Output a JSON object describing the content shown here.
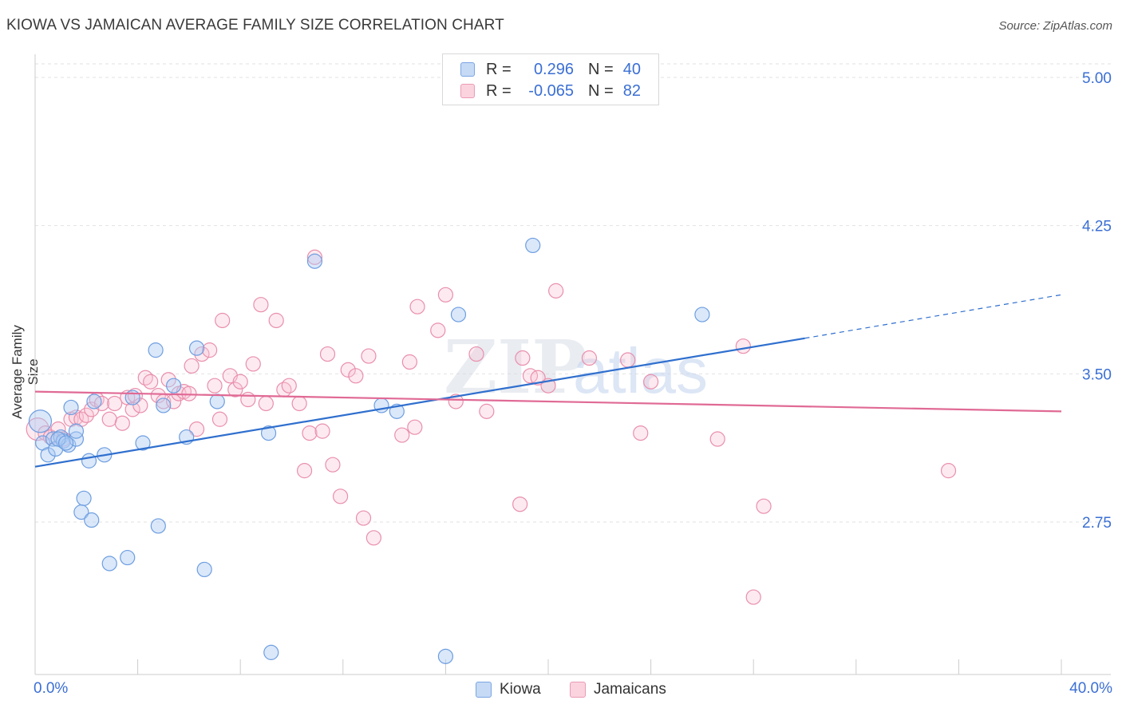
{
  "header": {
    "title": "KIOWA VS JAMAICAN AVERAGE FAMILY SIZE CORRELATION CHART",
    "source": "Source: ZipAtlas.com"
  },
  "colors": {
    "kiowa_fill": "#aecbf3",
    "kiowa_stroke": "#6e9ee0",
    "kiowa_line": "#2f6fce",
    "jamaican_fill": "#f8c4d4",
    "jamaican_stroke": "#e98fac",
    "jamaican_line": "#e06a95",
    "axis_label": "#3b6fd4"
  },
  "legend": {
    "kiowa": {
      "r_label": "R =",
      "r_value": "0.296",
      "n_label": "N =",
      "n_value": "40"
    },
    "jamaicans": {
      "r_label": "R =",
      "r_value": "-0.065",
      "n_label": "N =",
      "n_value": "82"
    }
  },
  "bottom_legend": {
    "kiowa": "Kiowa",
    "jamaicans": "Jamaicans"
  },
  "axes": {
    "x_min_label": "0.0%",
    "x_max_label": "40.0%",
    "y_title": "Average Family Size"
  },
  "chart_data": {
    "type": "scatter",
    "title": "KIOWA VS JAMAICAN AVERAGE FAMILY SIZE CORRELATION CHART",
    "xlabel": "",
    "ylabel": "Average Family Size",
    "xlim": [
      0,
      40
    ],
    "ylim": [
      2.0,
      5.1
    ],
    "y_ticks": [
      2.75,
      3.5,
      4.25,
      5.0
    ],
    "y_tick_labels": [
      "2.75",
      "3.50",
      "4.25",
      "5.00"
    ],
    "watermark": "ZIPatlas",
    "series": [
      {
        "name": "Kiowa",
        "R": 0.296,
        "N": 40,
        "trend": {
          "x0": 0,
          "y0": 3.03,
          "x1": 30.0,
          "y1": 3.68,
          "dash_to_x": 40,
          "dash_to_y": 3.9
        },
        "points": [
          [
            0.2,
            3.26,
            14
          ],
          [
            0.3,
            3.15,
            9
          ],
          [
            0.5,
            3.09,
            9
          ],
          [
            0.7,
            3.17,
            9
          ],
          [
            0.8,
            3.12,
            9
          ],
          [
            1.0,
            3.18,
            9
          ],
          [
            1.1,
            3.16,
            9
          ],
          [
            1.3,
            3.14,
            9
          ],
          [
            1.4,
            3.33,
            9
          ],
          [
            1.6,
            3.17,
            9
          ],
          [
            1.6,
            3.21,
            9
          ],
          [
            1.9,
            2.87,
            9
          ],
          [
            1.8,
            2.8,
            9
          ],
          [
            2.1,
            3.06,
            9
          ],
          [
            2.2,
            2.76,
            9
          ],
          [
            2.3,
            3.36,
            9
          ],
          [
            2.7,
            3.09,
            9
          ],
          [
            2.9,
            2.54,
            9
          ],
          [
            3.6,
            2.57,
            9
          ],
          [
            3.8,
            3.38,
            9
          ],
          [
            4.2,
            3.15,
            9
          ],
          [
            4.7,
            3.62,
            9
          ],
          [
            4.8,
            2.73,
            9
          ],
          [
            5.0,
            3.34,
            9
          ],
          [
            5.4,
            3.44,
            9
          ],
          [
            5.9,
            3.18,
            9
          ],
          [
            6.3,
            3.63,
            9
          ],
          [
            6.6,
            2.51,
            9
          ],
          [
            7.1,
            3.36,
            9
          ],
          [
            9.1,
            3.2,
            9
          ],
          [
            9.2,
            2.09,
            9
          ],
          [
            10.9,
            4.07,
            9
          ],
          [
            13.5,
            3.34,
            9
          ],
          [
            14.1,
            3.31,
            9
          ],
          [
            16.0,
            2.07,
            9
          ],
          [
            16.5,
            3.8,
            9
          ],
          [
            19.4,
            4.15,
            9
          ],
          [
            26.0,
            3.8,
            9
          ],
          [
            0.9,
            3.17,
            9
          ],
          [
            1.2,
            3.15,
            9
          ]
        ]
      },
      {
        "name": "Jamaicans",
        "R": -0.065,
        "N": 82,
        "trend": {
          "x0": 0,
          "y0": 3.41,
          "x1": 40,
          "y1": 3.31
        },
        "points": [
          [
            0.1,
            3.22,
            14
          ],
          [
            0.4,
            3.2,
            9
          ],
          [
            0.6,
            3.18,
            9
          ],
          [
            0.9,
            3.22,
            9
          ],
          [
            1.1,
            3.17,
            9
          ],
          [
            1.4,
            3.27,
            9
          ],
          [
            1.6,
            3.28,
            9
          ],
          [
            1.8,
            3.27,
            9
          ],
          [
            2.0,
            3.29,
            9
          ],
          [
            2.2,
            3.32,
            9
          ],
          [
            2.4,
            3.37,
            9
          ],
          [
            2.6,
            3.35,
            9
          ],
          [
            2.9,
            3.27,
            9
          ],
          [
            3.1,
            3.35,
            9
          ],
          [
            3.4,
            3.25,
            9
          ],
          [
            3.6,
            3.38,
            9
          ],
          [
            3.8,
            3.32,
            9
          ],
          [
            3.9,
            3.39,
            9
          ],
          [
            4.1,
            3.34,
            9
          ],
          [
            4.3,
            3.48,
            9
          ],
          [
            4.5,
            3.46,
            9
          ],
          [
            4.8,
            3.39,
            9
          ],
          [
            5.0,
            3.36,
            9
          ],
          [
            5.2,
            3.47,
            9
          ],
          [
            5.4,
            3.36,
            9
          ],
          [
            5.6,
            3.4,
            9
          ],
          [
            5.8,
            3.41,
            9
          ],
          [
            6.0,
            3.4,
            9
          ],
          [
            6.1,
            3.54,
            9
          ],
          [
            6.3,
            3.22,
            9
          ],
          [
            6.5,
            3.6,
            9
          ],
          [
            6.8,
            3.62,
            9
          ],
          [
            7.0,
            3.44,
            9
          ],
          [
            7.2,
            3.27,
            9
          ],
          [
            7.3,
            3.77,
            9
          ],
          [
            7.6,
            3.49,
            9
          ],
          [
            7.8,
            3.42,
            9
          ],
          [
            8.0,
            3.46,
            9
          ],
          [
            8.3,
            3.37,
            9
          ],
          [
            8.5,
            3.55,
            9
          ],
          [
            8.8,
            3.85,
            9
          ],
          [
            9.0,
            3.35,
            9
          ],
          [
            9.4,
            3.77,
            9
          ],
          [
            9.7,
            3.42,
            9
          ],
          [
            9.9,
            3.44,
            9
          ],
          [
            10.3,
            3.35,
            9
          ],
          [
            10.5,
            3.01,
            9
          ],
          [
            10.7,
            3.2,
            9
          ],
          [
            10.9,
            4.09,
            9
          ],
          [
            11.2,
            3.21,
            9
          ],
          [
            11.4,
            3.6,
            9
          ],
          [
            11.6,
            3.04,
            9
          ],
          [
            11.9,
            2.88,
            9
          ],
          [
            12.2,
            3.52,
            9
          ],
          [
            12.5,
            3.49,
            9
          ],
          [
            12.8,
            2.77,
            9
          ],
          [
            13.0,
            3.59,
            9
          ],
          [
            13.2,
            2.67,
            9
          ],
          [
            14.3,
            3.19,
            9
          ],
          [
            14.6,
            3.56,
            9
          ],
          [
            14.8,
            3.23,
            9
          ],
          [
            14.9,
            3.84,
            9
          ],
          [
            15.7,
            3.72,
            9
          ],
          [
            16.0,
            3.9,
            9
          ],
          [
            16.4,
            3.36,
            9
          ],
          [
            17.2,
            3.6,
            9
          ],
          [
            17.6,
            3.31,
            9
          ],
          [
            18.9,
            2.84,
            9
          ],
          [
            19.0,
            3.58,
            9
          ],
          [
            19.3,
            3.49,
            9
          ],
          [
            19.6,
            3.48,
            9
          ],
          [
            20.0,
            3.44,
            9
          ],
          [
            20.3,
            3.92,
            9
          ],
          [
            21.6,
            3.58,
            9
          ],
          [
            23.1,
            3.57,
            9
          ],
          [
            23.6,
            3.2,
            9
          ],
          [
            24.0,
            3.46,
            9
          ],
          [
            26.6,
            3.17,
            9
          ],
          [
            27.6,
            3.64,
            9
          ],
          [
            28.0,
            2.37,
            9
          ],
          [
            28.4,
            2.83,
            9
          ],
          [
            35.6,
            3.01,
            9
          ]
        ]
      }
    ]
  }
}
